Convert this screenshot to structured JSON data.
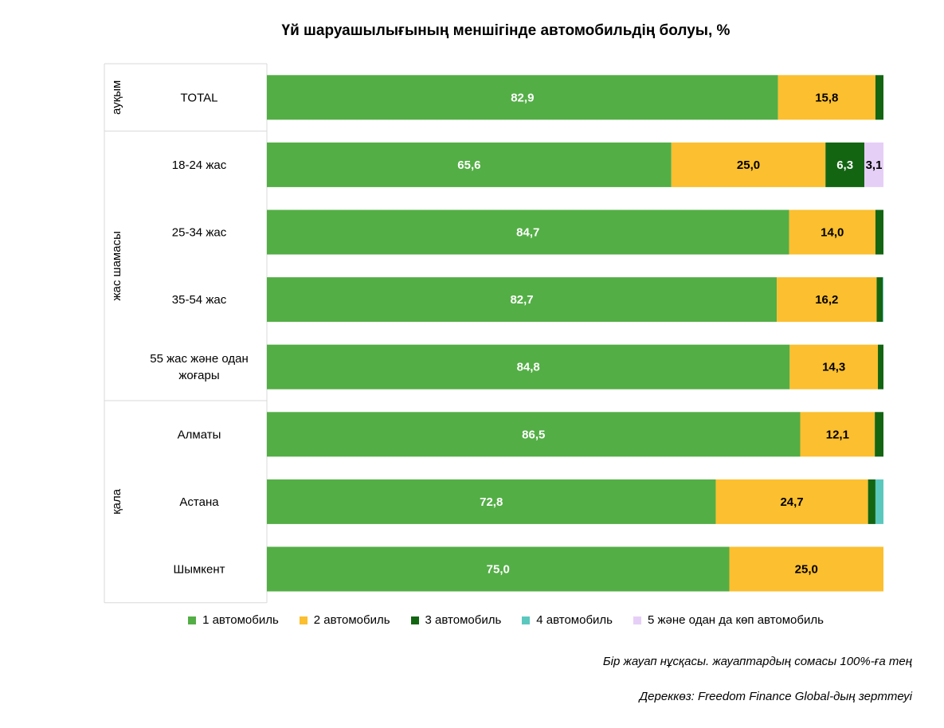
{
  "chart_data": {
    "type": "bar",
    "orientation": "horizontal",
    "stacked": true,
    "title": "Үй шаруашылығының меншігінде автомобильдің болуы, %",
    "xlim": [
      0,
      100
    ],
    "grid": false,
    "legend_position": "bottom",
    "groups": [
      {
        "label": "ауқым",
        "categories": [
          "TOTAL"
        ]
      },
      {
        "label": "жас шамасы",
        "categories": [
          "18-24 жас",
          "25-34 жас",
          "35-54 жас",
          "55 жас және одан жоғары"
        ]
      },
      {
        "label": "қала",
        "categories": [
          "Алматы",
          "Астана",
          "Шымкент"
        ]
      }
    ],
    "categories": [
      "TOTAL",
      "18-24 жас",
      "25-34 жас",
      "35-54 жас",
      "55 жас және одан жоғары",
      "Алматы",
      "Астана",
      "Шымкент"
    ],
    "category_lines": [
      [
        "TOTAL"
      ],
      [
        "18-24 жас"
      ],
      [
        "25-34 жас"
      ],
      [
        "35-54 жас"
      ],
      [
        "55 жас және одан",
        "жоғары"
      ],
      [
        "Алматы"
      ],
      [
        "Астана"
      ],
      [
        "Шымкент"
      ]
    ],
    "series": [
      {
        "name": "1 автомобиль",
        "color": "#53ae45",
        "label_color": "#ffffff",
        "values": [
          82.9,
          65.6,
          84.7,
          82.7,
          84.8,
          86.5,
          72.8,
          75.0
        ],
        "labels": [
          "82,9",
          "65,6",
          "84,7",
          "82,7",
          "84,8",
          "86,5",
          "72,8",
          "75,0"
        ]
      },
      {
        "name": "2 автомобиль",
        "color": "#fbbf2f",
        "label_color": "#000000",
        "values": [
          15.8,
          25.0,
          14.0,
          16.2,
          14.3,
          12.1,
          24.7,
          25.0
        ],
        "labels": [
          "15,8",
          "25,0",
          "14,0",
          "16,2",
          "14,3",
          "12,1",
          "24,7",
          "25,0"
        ]
      },
      {
        "name": "3 автомобиль",
        "color": "#136512",
        "label_color": "#ffffff",
        "values": [
          1.3,
          6.3,
          1.3,
          1.0,
          0.9,
          1.4,
          1.2,
          0
        ],
        "labels": [
          "",
          "6,3",
          "",
          "",
          "",
          "",
          "",
          ""
        ]
      },
      {
        "name": "4 автомобиль",
        "color": "#5bc8be",
        "label_color": "#000000",
        "values": [
          0,
          0,
          0,
          0.1,
          0,
          0,
          1.3,
          0
        ],
        "labels": [
          "",
          "",
          "",
          "",
          "",
          "",
          "",
          ""
        ]
      },
      {
        "name": "5 және одан да көп автомобиль",
        "color": "#e6cff7",
        "label_color": "#000000",
        "values": [
          0,
          3.1,
          0,
          0,
          0,
          0,
          0,
          0
        ],
        "labels": [
          "",
          "3,1",
          "",
          "",
          "",
          "",
          "",
          ""
        ]
      }
    ]
  },
  "footnotes": {
    "note": "Бір жауап нұсқасы. жауаптардың сомасы 100%-ға тең",
    "source": "Дереккөз: Freedom Finance Global-дың зерттеуі"
  }
}
